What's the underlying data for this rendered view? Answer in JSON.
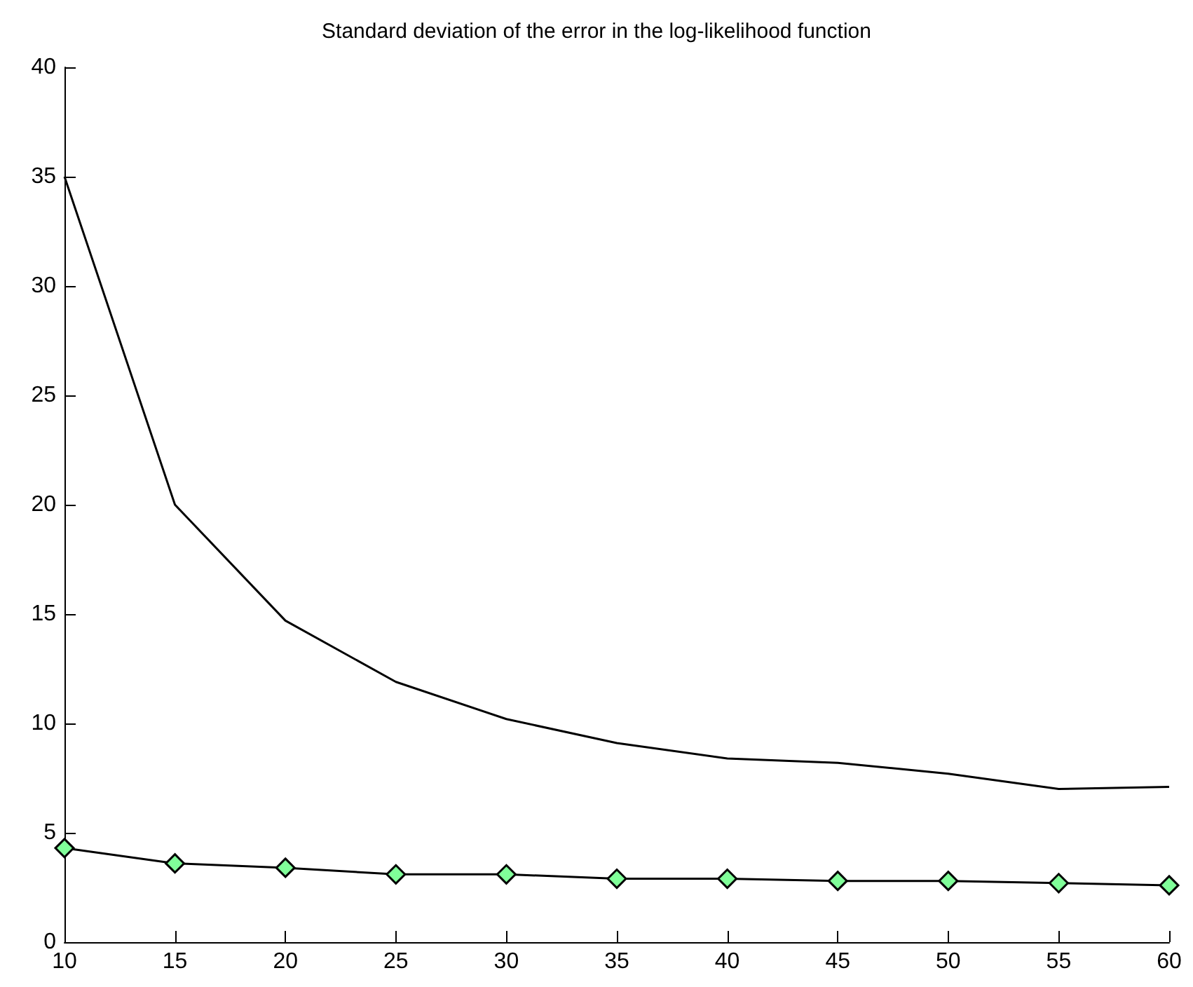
{
  "chart_data": {
    "type": "line",
    "title": "Standard deviation of the error in the log-likelihood function",
    "x": [
      10,
      15,
      20,
      25,
      30,
      35,
      40,
      45,
      50,
      55,
      60
    ],
    "series": [
      {
        "color": "#000000",
        "marker": "none",
        "values": [
          35,
          20,
          14.7,
          11.9,
          10.2,
          9.1,
          8.4,
          8.2,
          7.7,
          7.0,
          7.1
        ]
      },
      {
        "color": "#80ff99",
        "marker": "diamond",
        "values": [
          4.3,
          3.6,
          3.4,
          3.1,
          3.1,
          2.9,
          2.9,
          2.8,
          2.8,
          2.7,
          2.6
        ]
      }
    ],
    "xlim": [
      10,
      60
    ],
    "xticks": [
      10,
      15,
      20,
      25,
      30,
      35,
      40,
      45,
      50,
      55,
      60
    ],
    "ylim": [
      0,
      40
    ],
    "yticks": [
      0,
      5,
      10,
      15,
      20,
      25,
      30,
      35,
      40
    ],
    "grid": false
  }
}
